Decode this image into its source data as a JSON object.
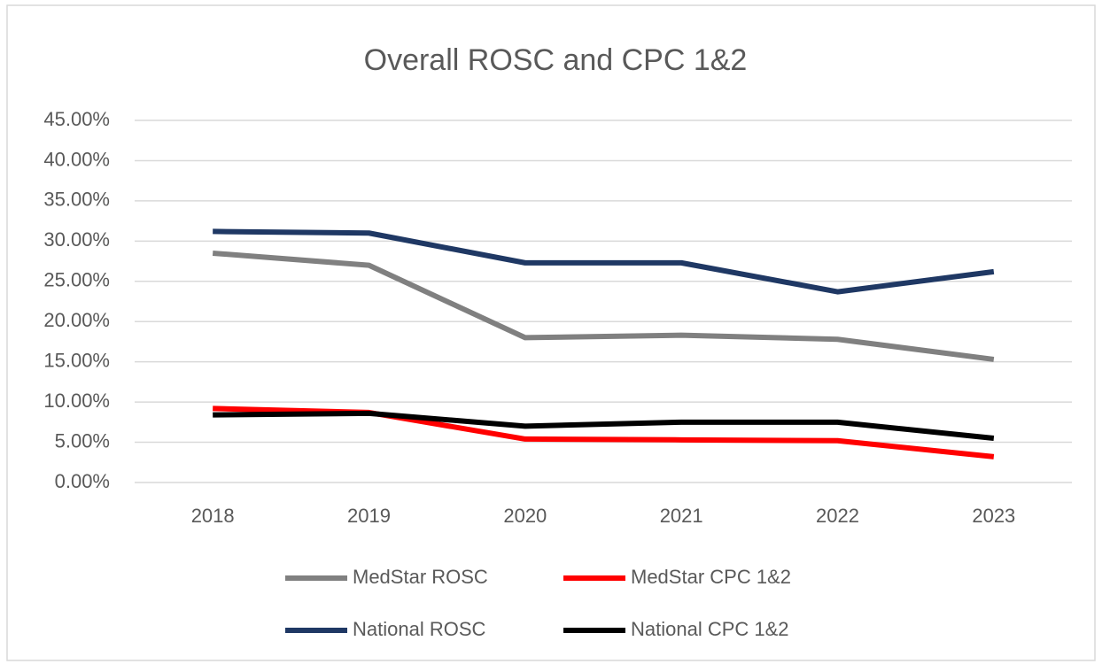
{
  "chart_data": {
    "type": "line",
    "title": "Overall ROSC and CPC 1&2",
    "categories": [
      "2018",
      "2019",
      "2020",
      "2021",
      "2022",
      "2023"
    ],
    "series": [
      {
        "name": "MedStar ROSC",
        "color": "#808080",
        "values": [
          28.5,
          27.0,
          18.0,
          18.3,
          17.8,
          15.3
        ]
      },
      {
        "name": "MedStar CPC 1&2",
        "color": "#ff0000",
        "values": [
          9.2,
          8.7,
          5.4,
          5.3,
          5.2,
          3.2
        ]
      },
      {
        "name": "National ROSC",
        "color": "#1f3864",
        "values": [
          31.2,
          31.0,
          27.3,
          27.3,
          23.7,
          26.2
        ]
      },
      {
        "name": "National CPC 1&2",
        "color": "#000000",
        "values": [
          8.4,
          8.6,
          7.0,
          7.5,
          7.5,
          5.5
        ]
      }
    ],
    "ylim": [
      0,
      45
    ],
    "yticks": [
      {
        "value": 0,
        "label": "0.00%"
      },
      {
        "value": 5,
        "label": "5.00%"
      },
      {
        "value": 10,
        "label": "10.00%"
      },
      {
        "value": 15,
        "label": "15.00%"
      },
      {
        "value": 20,
        "label": "20.00%"
      },
      {
        "value": 25,
        "label": "25.00%"
      },
      {
        "value": 30,
        "label": "30.00%"
      },
      {
        "value": 35,
        "label": "35.00%"
      },
      {
        "value": 40,
        "label": "40.00%"
      },
      {
        "value": 45,
        "label": "45.00%"
      }
    ],
    "grid": true,
    "legend": "bottom"
  }
}
